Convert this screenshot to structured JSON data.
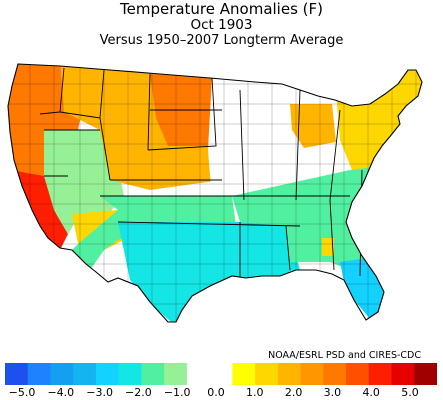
{
  "title": "Temperature Anomalies (F)",
  "period": "Oct 1903",
  "comparison": "Versus 1950–2007 Longterm Average",
  "credit": "NOAA/ESRL PSD and CIRES-CDC",
  "legend": {
    "ticks": [
      "−5.0",
      "−4.0",
      "−3.0",
      "−2.0",
      "−1.0",
      "0.0",
      "1.0",
      "2.0",
      "3.0",
      "4.0",
      "5.0"
    ],
    "colors": [
      "#1e50f0",
      "#1e82ff",
      "#14a0f0",
      "#14b4f0",
      "#14d2ff",
      "#14e6e6",
      "#50f0a0",
      "#96f096",
      "#ffffff",
      "#ffffff",
      "#ffff00",
      "#ffd700",
      "#ffb400",
      "#ff9600",
      "#ff7800",
      "#ff5000",
      "#ff1e00",
      "#e60000",
      "#a00000"
    ]
  },
  "map_colors": {
    "west_coast": "#ff7800",
    "california_south": "#ff1e00",
    "great_basin": "#96f096",
    "northern_rockies": "#ffb400",
    "dakotas": "#ff7800",
    "southwest": "#50f0a0",
    "texas_plains": "#14e6e6",
    "southeast": "#50f0a0",
    "florida": "#14d2ff",
    "midwest": "#ffffff",
    "great_lakes": "#ffb400",
    "new_england": "#ffd700",
    "arizona": "#ffd700"
  }
}
